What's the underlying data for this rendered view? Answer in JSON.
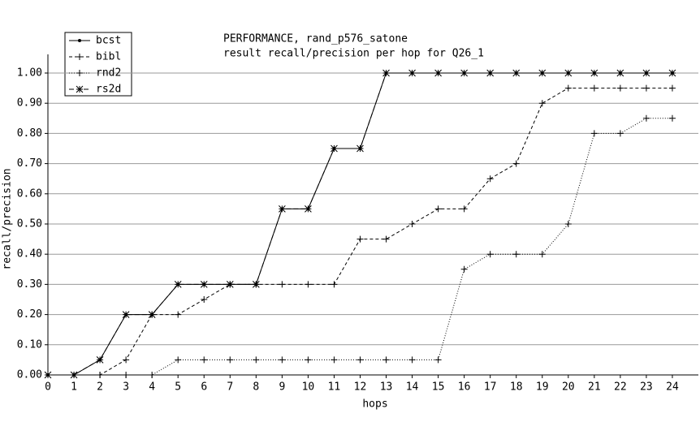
{
  "chart_data": {
    "type": "line",
    "title": "PERFORMANCE, rand_p576_satone",
    "subtitle": "result recall/precision per hop for Q26_1",
    "x_label": "hops",
    "y_label": "recall/precision",
    "x": [
      0,
      1,
      2,
      3,
      4,
      5,
      6,
      7,
      8,
      9,
      10,
      11,
      12,
      13,
      14,
      15,
      16,
      17,
      18,
      19,
      20,
      21,
      22,
      23,
      24
    ],
    "xlim": [
      0,
      25
    ],
    "xticks": [
      0,
      1,
      2,
      3,
      4,
      5,
      6,
      7,
      8,
      9,
      10,
      11,
      12,
      13,
      14,
      15,
      16,
      17,
      18,
      19,
      20,
      21,
      22,
      23,
      24
    ],
    "ylim": [
      0,
      1
    ],
    "yticks": [
      {
        "value": 0,
        "label": "0.00"
      },
      {
        "value": 0.1,
        "label": "0.10"
      },
      {
        "value": 0.2,
        "label": "0.20"
      },
      {
        "value": 0.3,
        "label": "0.30"
      },
      {
        "value": 0.4,
        "label": "0.40"
      },
      {
        "value": 0.5,
        "label": "0.50"
      },
      {
        "value": 0.6,
        "label": "0.60"
      },
      {
        "value": 0.7,
        "label": "0.70"
      },
      {
        "value": 0.8,
        "label": "0.80"
      },
      {
        "value": 0.9,
        "label": "0.90"
      },
      {
        "value": 1,
        "label": "1.00"
      }
    ],
    "grid": true,
    "legend": "top-left",
    "series": [
      {
        "name": "bcst",
        "color": "#000000",
        "dash": "solid",
        "marker": "dot",
        "values": [
          0,
          0,
          0.05,
          0.2,
          0.2,
          0.3,
          0.3,
          0.3,
          0.3,
          0.55,
          0.55,
          0.75,
          0.75,
          1,
          1,
          1,
          1,
          1,
          1,
          1,
          1,
          1,
          1,
          1,
          1
        ]
      },
      {
        "name": "bibl",
        "color": "#000000",
        "dash": "dashed",
        "marker": "plus",
        "values": [
          0,
          0,
          0,
          0.05,
          0.2,
          0.2,
          0.25,
          0.3,
          0.3,
          0.3,
          0.3,
          0.3,
          0.45,
          0.45,
          0.5,
          0.55,
          0.55,
          0.65,
          0.7,
          0.9,
          0.95,
          0.95,
          0.95,
          0.95,
          0.95
        ]
      },
      {
        "name": "rnd2",
        "color": "#000000",
        "dash": "dotted",
        "marker": "plus",
        "values": [
          0,
          0,
          0,
          0,
          0,
          0.05,
          0.05,
          0.05,
          0.05,
          0.05,
          0.05,
          0.05,
          0.05,
          0.05,
          0.05,
          0.05,
          0.35,
          0.4,
          0.4,
          0.4,
          0.5,
          0.8,
          0.8,
          0.85,
          0.85
        ]
      },
      {
        "name": "rs2d",
        "color": "#000000",
        "dash": "longdash",
        "marker": "star",
        "values": [
          0,
          0,
          0.05,
          0.2,
          0.2,
          0.3,
          0.3,
          0.3,
          0.3,
          0.55,
          0.55,
          0.75,
          0.75,
          1,
          1,
          1,
          1,
          1,
          1,
          1,
          1,
          1,
          1,
          1,
          1
        ]
      }
    ]
  }
}
